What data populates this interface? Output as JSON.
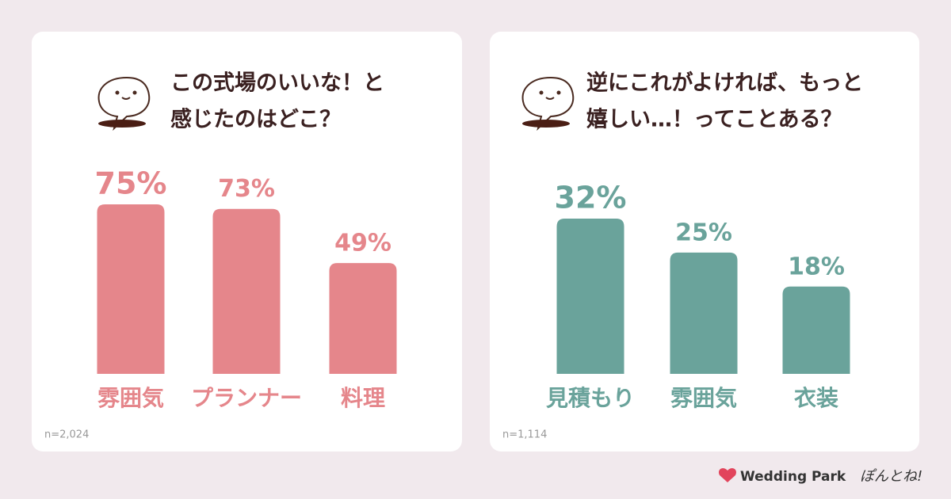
{
  "chart_data": [
    {
      "type": "bar",
      "title": [
        "この式場のいいな！と",
        "感じたのはどこ？"
      ],
      "categories": [
        "雰囲気",
        "プランナー",
        "料理"
      ],
      "values": [
        75,
        73,
        49
      ],
      "value_labels": [
        "75%",
        "73%",
        "49%"
      ],
      "color": "#e5868b",
      "note": "n=2,024"
    },
    {
      "type": "bar",
      "title": [
        "逆にこれがよければ、もっと",
        "嬉しい…！ってことある？"
      ],
      "categories": [
        "見積もり",
        "雰囲気",
        "衣装"
      ],
      "values": [
        32,
        25,
        18
      ],
      "value_labels": [
        "32%",
        "25%",
        "18%"
      ],
      "color": "#6aa39b",
      "note": "n=1,114"
    }
  ],
  "footer": {
    "brand": "Wedding Park",
    "tagline": "ぽんとね!"
  }
}
